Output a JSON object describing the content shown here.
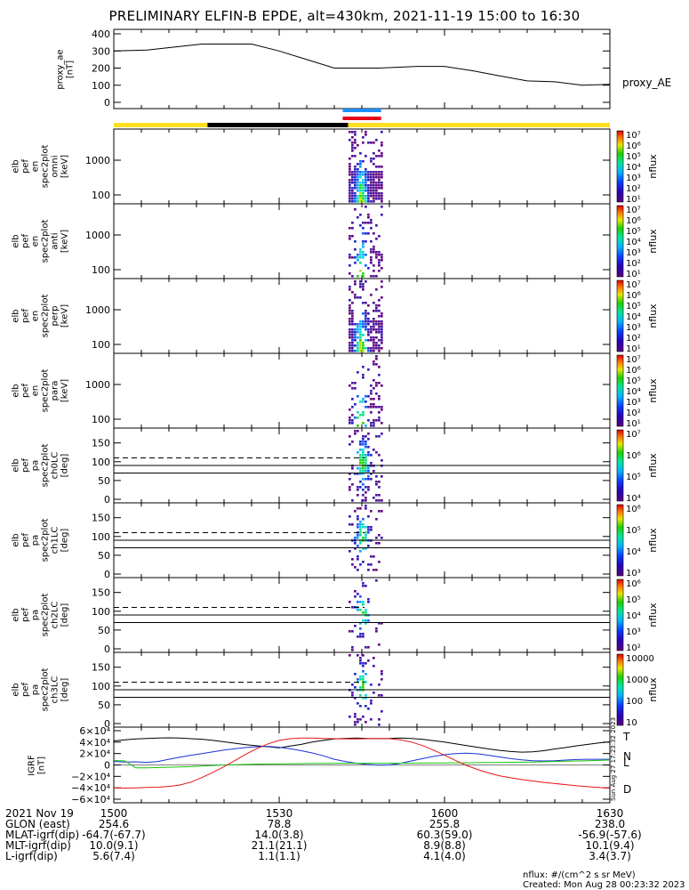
{
  "title": "PRELIMINARY ELFIN-B EPDE, alt=430km, 2021-11-19 15:00 to 16:30",
  "units_note": "nflux: #/(cm^2 s sr MeV)",
  "created": "Created: Mon Aug 28 00:23:32 2023",
  "side_stamp": "Sun Aug 27 17:23:32 2023",
  "colors": {
    "yellow": "#ffdf1f",
    "black": "#000000",
    "blue_bar": "#1e90ff",
    "red_bar": "#e8001a",
    "curve_T": "#000000",
    "curve_N": "#1a32d8",
    "curve_L": "#16c40a",
    "curve_D": "#e81414"
  },
  "chart_data": [
    {
      "type": "line",
      "id": "proxy_ae",
      "ylabel": [
        "proxy_ae",
        "[nT]"
      ],
      "series_label": "proxy_AE",
      "ylim": [
        0,
        400
      ],
      "yticks": [
        "400",
        "300",
        "200",
        "100",
        "0"
      ],
      "x": [
        0,
        6,
        16,
        25,
        30,
        35,
        40,
        48,
        55,
        60,
        65,
        70,
        75,
        80,
        85,
        90
      ],
      "values": [
        300,
        305,
        340,
        340,
        300,
        250,
        200,
        200,
        210,
        210,
        185,
        155,
        125,
        120,
        100,
        105
      ]
    },
    {
      "type": "heatmap",
      "id": "omni",
      "ylabel": [
        "elb",
        "pef",
        "en",
        "spec2plot",
        "omni",
        "[keV]"
      ],
      "yticks": [
        "1000",
        "100"
      ],
      "scale": "log",
      "colorbar": {
        "label": "nflux",
        "ticks": [
          "10⁷",
          "10⁶",
          "10⁵",
          "10⁴",
          "10³",
          "10²",
          "10¹"
        ]
      }
    },
    {
      "type": "heatmap",
      "id": "anti",
      "ylabel": [
        "elb",
        "pef",
        "en",
        "spec2plot",
        "anti",
        "[keV]"
      ],
      "yticks": [
        "1000",
        "100"
      ],
      "scale": "log",
      "colorbar": {
        "label": "nflux",
        "ticks": [
          "10⁷",
          "10⁶",
          "10⁵",
          "10⁴",
          "10³",
          "10²",
          "10¹"
        ]
      }
    },
    {
      "type": "heatmap",
      "id": "perp",
      "ylabel": [
        "elb",
        "pef",
        "en",
        "spec2plot",
        "perp",
        "[keV]"
      ],
      "yticks": [
        "1000",
        "100"
      ],
      "scale": "log",
      "colorbar": {
        "label": "nflux",
        "ticks": [
          "10⁷",
          "10⁶",
          "10⁵",
          "10⁴",
          "10³",
          "10²",
          "10¹"
        ]
      }
    },
    {
      "type": "heatmap",
      "id": "para",
      "ylabel": [
        "elb",
        "pef",
        "en",
        "spec2plot",
        "para",
        "[keV]"
      ],
      "yticks": [
        "1000",
        "100"
      ],
      "scale": "log",
      "colorbar": {
        "label": "nflux",
        "ticks": [
          "10⁷",
          "10⁶",
          "10⁵",
          "10⁴",
          "10³",
          "10²",
          "10¹"
        ]
      }
    },
    {
      "type": "heatmap",
      "id": "ch0LC",
      "ylabel": [
        "elb",
        "pef",
        "pa",
        "spec2plot",
        "ch0LC",
        "[deg]"
      ],
      "yticks": [
        "150",
        "100",
        "50",
        "0"
      ],
      "ylim": [
        0,
        180
      ],
      "colorbar": {
        "label": "nflux",
        "ticks": [
          "10⁷",
          "10⁶",
          "10⁵",
          "10⁴"
        ]
      }
    },
    {
      "type": "heatmap",
      "id": "ch1LC",
      "ylabel": [
        "elb",
        "pef",
        "pa",
        "spec2plot",
        "ch1LC",
        "[deg]"
      ],
      "yticks": [
        "150",
        "100",
        "50",
        "0"
      ],
      "ylim": [
        0,
        180
      ],
      "colorbar": {
        "label": "nflux",
        "ticks": [
          "10⁶",
          "10⁵",
          "10⁴",
          "10³"
        ]
      }
    },
    {
      "type": "heatmap",
      "id": "ch2LC",
      "ylabel": [
        "elb",
        "pef",
        "pa",
        "spec2plot",
        "ch2LC",
        "[deg]"
      ],
      "yticks": [
        "150",
        "100",
        "50",
        "0"
      ],
      "ylim": [
        0,
        180
      ],
      "colorbar": {
        "label": "nflux",
        "ticks": [
          "10⁶",
          "10⁵",
          "10⁴",
          "10³",
          "10²"
        ]
      }
    },
    {
      "type": "heatmap",
      "id": "ch3LC",
      "ylabel": [
        "elb",
        "pef",
        "pa",
        "spec2plot",
        "ch3LC",
        "[deg]"
      ],
      "yticks": [
        "150",
        "100",
        "50",
        "0"
      ],
      "ylim": [
        0,
        180
      ],
      "colorbar": {
        "label": "nflux",
        "ticks": [
          "10000",
          "1000",
          "100",
          "10"
        ]
      }
    },
    {
      "type": "line",
      "id": "igrf",
      "ylabel": [
        "IGRF",
        "[nT]"
      ],
      "ylim": [
        -60000,
        60000
      ],
      "yticks": [
        "6×10⁴",
        "4×10⁴",
        "2×10⁴",
        "0",
        "−2×10⁴",
        "−4×10⁴",
        "−6×10⁴"
      ],
      "x": [
        0,
        2,
        4,
        6,
        8,
        10,
        12,
        14,
        16,
        18,
        20,
        22,
        24,
        26,
        28,
        30,
        32,
        34,
        36,
        38,
        40,
        42,
        44,
        46,
        48,
        50,
        52,
        54,
        56,
        58,
        60,
        62,
        64,
        66,
        68,
        70,
        72,
        74,
        76,
        78,
        80,
        82,
        84,
        86,
        88,
        90
      ],
      "series": [
        {
          "name": "T",
          "values": [
            42000,
            44000,
            45500,
            46500,
            47000,
            47500,
            47000,
            46000,
            45000,
            43000,
            40500,
            38000,
            35500,
            33500,
            32000,
            30000,
            33000,
            36000,
            40000,
            43000,
            45500,
            46500,
            47000,
            46500,
            46000,
            46500,
            47000,
            46500,
            45000,
            42500,
            40000,
            37000,
            34000,
            31000,
            28000,
            25500,
            23500,
            22500,
            23000,
            25000,
            28000,
            30500,
            33500,
            36000,
            38500,
            40500
          ]
        },
        {
          "name": "N",
          "values": [
            6000,
            5000,
            5500,
            4500,
            6000,
            10000,
            13500,
            17000,
            20000,
            23000,
            26000,
            28500,
            30500,
            32000,
            32500,
            31000,
            28500,
            25000,
            21000,
            16000,
            10000,
            6000,
            3000,
            1000,
            -500,
            0,
            3000,
            7000,
            11000,
            15000,
            18000,
            20000,
            20500,
            19500,
            17000,
            14000,
            11000,
            9000,
            7500,
            7000,
            7500,
            8500,
            9500,
            10000,
            10000,
            10000
          ]
        },
        {
          "name": "L",
          "values": [
            8000,
            7000,
            -5000,
            -5000,
            -4500,
            -4000,
            -3500,
            -3000,
            -2000,
            -1000,
            0,
            500,
            1000,
            1500,
            1800,
            2000,
            2200,
            2400,
            2600,
            2700,
            2800,
            2900,
            3000,
            3000,
            3000,
            3000,
            3100,
            3200,
            3300,
            3400,
            3500,
            3700,
            3800,
            4000,
            4200,
            4400,
            4600,
            4800,
            5200,
            5600,
            6000,
            6500,
            7000,
            7500,
            8000,
            8500
          ]
        },
        {
          "name": "D",
          "values": [
            -40000,
            -40500,
            -40000,
            -39500,
            -39000,
            -37500,
            -35000,
            -30000,
            -22000,
            -13000,
            -3000,
            8000,
            19000,
            29000,
            37000,
            43000,
            46000,
            47000,
            47000,
            46500,
            46000,
            45500,
            45500,
            46000,
            46500,
            46000,
            44000,
            40000,
            34000,
            26000,
            17000,
            8000,
            -1000,
            -8000,
            -14000,
            -19000,
            -22500,
            -25500,
            -28000,
            -30500,
            -32500,
            -34500,
            -36500,
            -38000,
            -39500,
            -41000
          ]
        }
      ]
    }
  ],
  "orbit_bar": {
    "segments": [
      {
        "start": 0,
        "end": 17,
        "color": "yellow"
      },
      {
        "start": 17,
        "end": 42.5,
        "color": "black"
      },
      {
        "start": 42.5,
        "end": 90,
        "color": "yellow"
      }
    ],
    "markers": [
      {
        "start": 42.5,
        "end": 48.5,
        "color": "blue_bar"
      },
      {
        "start": 42.5,
        "end": 48.5,
        "color": "red_bar"
      }
    ]
  },
  "xaxis": {
    "ticks": [
      {
        "x": 0,
        "label": "1500"
      },
      {
        "x": 30,
        "label": "1530"
      },
      {
        "x": 60,
        "label": "1600"
      },
      {
        "x": 90,
        "label": "1630"
      }
    ]
  },
  "ephemeris": {
    "rows": [
      {
        "label": "2021 Nov 19",
        "values": [
          "",
          "",
          "",
          ""
        ]
      },
      {
        "label": "GLON (east)",
        "values": [
          "254.6",
          "78.8",
          "255.8",
          "238.0"
        ]
      },
      {
        "label": "MLAT-igrf(dip)",
        "values": [
          "-64.7(-67.7)",
          "14.0(3.8)",
          "60.3(59.0)",
          "-56.9(-57.6)"
        ]
      },
      {
        "label": "MLT-igrf(dip)",
        "values": [
          "10.0(9.1)",
          "21.1(21.1)",
          "8.9(8.8)",
          "10.1(9.4)"
        ]
      },
      {
        "label": "L-igrf(dip)",
        "values": [
          "5.6(7.4)",
          "1.1(1.1)",
          "4.1(4.0)",
          "3.4(3.7)"
        ]
      }
    ]
  }
}
